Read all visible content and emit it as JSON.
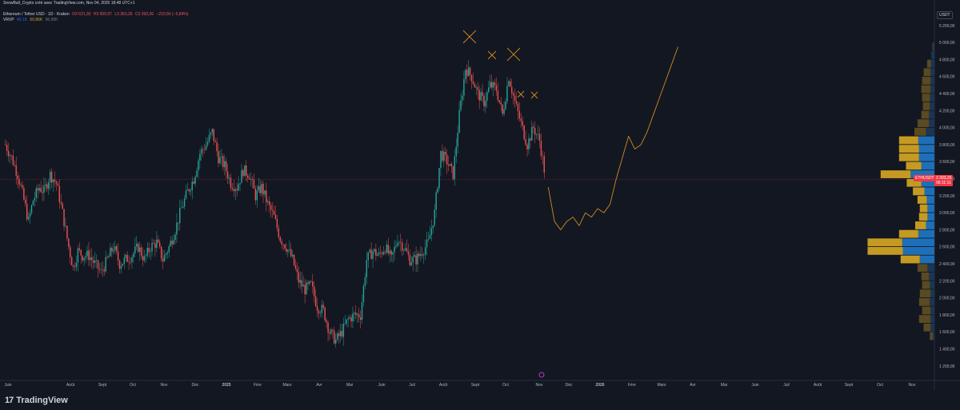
{
  "header": {
    "line1": "SnowBall_Crypto créé avec TradingView.com, Nov 04, 2025 18:48 UTC+1",
    "symbol_line": "Ethereum / Tether USD · 1D · Kraken",
    "ohlc": {
      "o": "O3 621,30",
      "h": "H3 650,97",
      "l": "L3 363,26",
      "c": "C3 393,26",
      "chg": "−210,56 (−5,84%)"
    },
    "vrvp_label": "VRVP",
    "vrvp_v1": "46,1K",
    "vrvp_v2": "50,86K",
    "vrvp_v3": "96,96K"
  },
  "currency_badge": "USDT",
  "last_price_tag": {
    "symbol": "ETHUSDT",
    "price": "3 393,26",
    "countdown": "06:11:11"
  },
  "brand": "TradingView",
  "colors": {
    "up": "#26a69a",
    "down": "#ef5350",
    "projection": "#d08a1e",
    "vp_up": "#2962ff",
    "vp_down": "#c9a227",
    "price_line": "#f23645",
    "background": "#131722"
  },
  "chart_data": {
    "type": "candlestick",
    "symbol": "Ethereum / Tether USD",
    "timeframe": "1D",
    "exchange": "Kraken",
    "y_axis": {
      "ticks": [
        "5 200,00",
        "5 000,00",
        "4 800,00",
        "4 600,00",
        "4 400,00",
        "4 200,00",
        "4 000,00",
        "3 800,00",
        "3 600,00",
        "3 400,00",
        "3 200,00",
        "3 000,00",
        "2 800,00",
        "2 600,00",
        "2 400,00",
        "2 200,00",
        "2 000,00",
        "1 800,00",
        "1 600,00",
        "1 400,00",
        "1 200,00"
      ],
      "tick_values": [
        5200,
        5000,
        4800,
        4600,
        4400,
        4200,
        4000,
        3800,
        3600,
        3400,
        3200,
        3000,
        2800,
        2600,
        2400,
        2200,
        2000,
        1800,
        1600,
        1400,
        1200
      ],
      "range": [
        1100,
        5350
      ]
    },
    "x_axis": {
      "ticks": [
        "Juin",
        "Août",
        "Sept",
        "Oct",
        "Nov",
        "Déc",
        "2025",
        "Févr",
        "Mars",
        "Avr",
        "Mai",
        "Juin",
        "Juil",
        "Août",
        "Sept",
        "Oct",
        "Nov",
        "Déc",
        "2026",
        "Févr",
        "Mars",
        "Avr",
        "Mai",
        "Juin",
        "Juil",
        "Août",
        "Sept",
        "Oct",
        "Nov"
      ]
    },
    "price_path": [
      [
        0,
        3800
      ],
      [
        4,
        3650
      ],
      [
        8,
        3450
      ],
      [
        12,
        3150
      ],
      [
        15,
        2900
      ],
      [
        18,
        3150
      ],
      [
        22,
        3300
      ],
      [
        25,
        3250
      ],
      [
        29,
        3450
      ],
      [
        33,
        3350
      ],
      [
        37,
        3000
      ],
      [
        41,
        2600
      ],
      [
        44,
        2350
      ],
      [
        47,
        2550
      ],
      [
        50,
        2500
      ],
      [
        54,
        2500
      ],
      [
        58,
        2400
      ],
      [
        62,
        2300
      ],
      [
        66,
        2450
      ],
      [
        70,
        2600
      ],
      [
        74,
        2400
      ],
      [
        78,
        2450
      ],
      [
        82,
        2500
      ],
      [
        86,
        2600
      ],
      [
        90,
        2450
      ],
      [
        94,
        2600
      ],
      [
        98,
        2650
      ],
      [
        102,
        2450
      ],
      [
        106,
        2600
      ],
      [
        110,
        2800
      ],
      [
        114,
        3050
      ],
      [
        118,
        3250
      ],
      [
        122,
        3400
      ],
      [
        126,
        3700
      ],
      [
        130,
        3800
      ],
      [
        134,
        3950
      ],
      [
        138,
        3650
      ],
      [
        142,
        3550
      ],
      [
        146,
        3350
      ],
      [
        150,
        3300
      ],
      [
        154,
        3500
      ],
      [
        158,
        3450
      ],
      [
        162,
        3200
      ],
      [
        166,
        3300
      ],
      [
        170,
        3100
      ],
      [
        174,
        2950
      ],
      [
        178,
        2700
      ],
      [
        182,
        2600
      ],
      [
        186,
        2450
      ],
      [
        190,
        2200
      ],
      [
        194,
        2100
      ],
      [
        198,
        2150
      ],
      [
        202,
        1900
      ],
      [
        206,
        1850
      ],
      [
        210,
        1600
      ],
      [
        214,
        1500
      ],
      [
        218,
        1600
      ],
      [
        222,
        1750
      ],
      [
        226,
        1800
      ],
      [
        230,
        1800
      ],
      [
        234,
        2450
      ],
      [
        238,
        2550
      ],
      [
        242,
        2500
      ],
      [
        246,
        2600
      ],
      [
        250,
        2450
      ],
      [
        254,
        2700
      ],
      [
        258,
        2600
      ],
      [
        262,
        2450
      ],
      [
        266,
        2450
      ],
      [
        270,
        2550
      ],
      [
        274,
        2650
      ],
      [
        278,
        3000
      ],
      [
        282,
        3700
      ],
      [
        286,
        3600
      ],
      [
        290,
        3450
      ],
      [
        294,
        4150
      ],
      [
        298,
        4700
      ],
      [
        302,
        4600
      ],
      [
        306,
        4400
      ],
      [
        310,
        4300
      ],
      [
        314,
        4500
      ],
      [
        318,
        4450
      ],
      [
        322,
        4150
      ],
      [
        326,
        4600
      ],
      [
        330,
        4300
      ],
      [
        334,
        4050
      ],
      [
        338,
        3800
      ],
      [
        342,
        4000
      ],
      [
        346,
        3850
      ],
      [
        350,
        3393
      ]
    ],
    "current_price": 3393.26,
    "projection_path": [
      [
        352,
        3300
      ],
      [
        356,
        2900
      ],
      [
        360,
        2800
      ],
      [
        364,
        2900
      ],
      [
        368,
        2950
      ],
      [
        372,
        2850
      ],
      [
        376,
        3000
      ],
      [
        380,
        2950
      ],
      [
        384,
        3050
      ],
      [
        388,
        3000
      ],
      [
        392,
        3100
      ],
      [
        396,
        3400
      ],
      [
        400,
        3650
      ],
      [
        404,
        3900
      ],
      [
        408,
        3750
      ],
      [
        412,
        3800
      ],
      [
        416,
        3950
      ],
      [
        420,
        4150
      ],
      [
        424,
        4350
      ],
      [
        428,
        4550
      ],
      [
        432,
        4750
      ],
      [
        436,
        4950
      ]
    ],
    "annotations": [
      "X",
      "X",
      "X",
      "X",
      "X"
    ],
    "volume_profile": [
      {
        "price": 4950,
        "up": 3,
        "down": 2
      },
      {
        "price": 4850,
        "up": 8,
        "down": 0
      },
      {
        "price": 4750,
        "up": 9,
        "down": 10
      },
      {
        "price": 4650,
        "up": 10,
        "down": 18
      },
      {
        "price": 4550,
        "up": 10,
        "down": 22
      },
      {
        "price": 4450,
        "up": 10,
        "down": 24
      },
      {
        "price": 4350,
        "up": 12,
        "down": 20
      },
      {
        "price": 4250,
        "up": 12,
        "down": 18
      },
      {
        "price": 4150,
        "up": 14,
        "down": 20
      },
      {
        "price": 4050,
        "up": 14,
        "down": 30
      },
      {
        "price": 3950,
        "up": 22,
        "down": 30
      },
      {
        "price": 3850,
        "up": 42,
        "down": 50
      },
      {
        "price": 3750,
        "up": 40,
        "down": 52
      },
      {
        "price": 3650,
        "up": 40,
        "down": 52
      },
      {
        "price": 3550,
        "up": 34,
        "down": 40
      },
      {
        "price": 3450,
        "up": 62,
        "down": 78
      },
      {
        "price": 3350,
        "up": 34,
        "down": 38
      },
      {
        "price": 3250,
        "up": 26,
        "down": 30
      },
      {
        "price": 3150,
        "up": 20,
        "down": 24
      },
      {
        "price": 3050,
        "up": 18,
        "down": 20
      },
      {
        "price": 2950,
        "up": 18,
        "down": 22
      },
      {
        "price": 2850,
        "up": 22,
        "down": 28
      },
      {
        "price": 2750,
        "up": 42,
        "down": 50
      },
      {
        "price": 2650,
        "up": 84,
        "down": 90
      },
      {
        "price": 2550,
        "up": 82,
        "down": 92
      },
      {
        "price": 2450,
        "up": 38,
        "down": 50
      },
      {
        "price": 2350,
        "up": 18,
        "down": 26
      },
      {
        "price": 2250,
        "up": 14,
        "down": 20
      },
      {
        "price": 2150,
        "up": 12,
        "down": 20
      },
      {
        "price": 2050,
        "up": 10,
        "down": 28
      },
      {
        "price": 1950,
        "up": 12,
        "down": 28
      },
      {
        "price": 1850,
        "up": 10,
        "down": 22
      },
      {
        "price": 1750,
        "up": 10,
        "down": 30
      },
      {
        "price": 1650,
        "up": 10,
        "down": 18
      },
      {
        "price": 1550,
        "up": 4,
        "down": 8
      },
      {
        "price": 1450,
        "up": 0,
        "down": 0
      }
    ]
  }
}
